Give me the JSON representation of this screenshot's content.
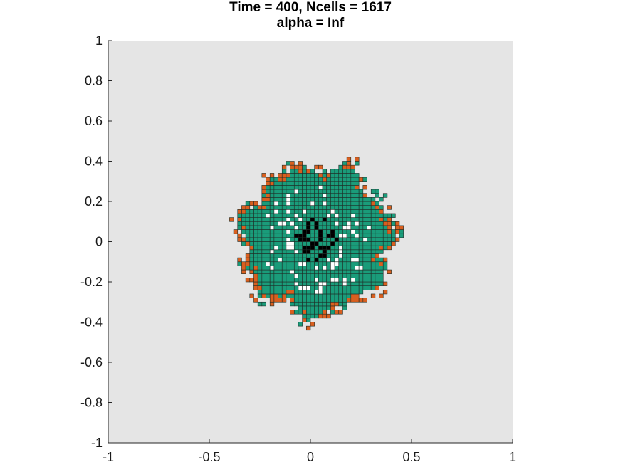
{
  "chart_data": {
    "type": "heatmap",
    "title_lines": [
      "Time = 400, Ncells = 1617",
      "alpha = Inf"
    ],
    "xlabel": "",
    "ylabel": "",
    "xlim": [
      -1,
      1
    ],
    "ylim": [
      -1,
      1
    ],
    "x_ticks": [
      -1,
      -0.5,
      0,
      0.5,
      1
    ],
    "y_ticks": [
      1,
      0.8,
      0.6,
      0.4,
      0.2,
      0,
      -0.2,
      -0.4,
      -0.6,
      -0.8,
      -1
    ],
    "x_tick_labels": [
      "-1",
      "-0.5",
      "0",
      "0.5",
      "1"
    ],
    "y_tick_labels": [
      "1",
      "0.8",
      "0.6",
      "0.4",
      "0.2",
      "0",
      "-0.2",
      "-0.4",
      "-0.6",
      "-0.8",
      "-1"
    ],
    "grid": false,
    "cell_size": 0.02,
    "colony": {
      "center": [
        0.02,
        0.0
      ],
      "bulk_radius": 0.36,
      "ragged_radius": 0.405,
      "necrotic_core_radius": 0.11,
      "quiescent_radius": 0.27
    },
    "colors": {
      "background": "#e5e5e5",
      "proliferating": "#1a9c7a",
      "edge_cells": "#d95f1f",
      "necrotic": "#000000",
      "empty": "#ffffff",
      "cell_border": "#1f2d27"
    },
    "cell_counts": {
      "Ncells": 1617
    }
  }
}
